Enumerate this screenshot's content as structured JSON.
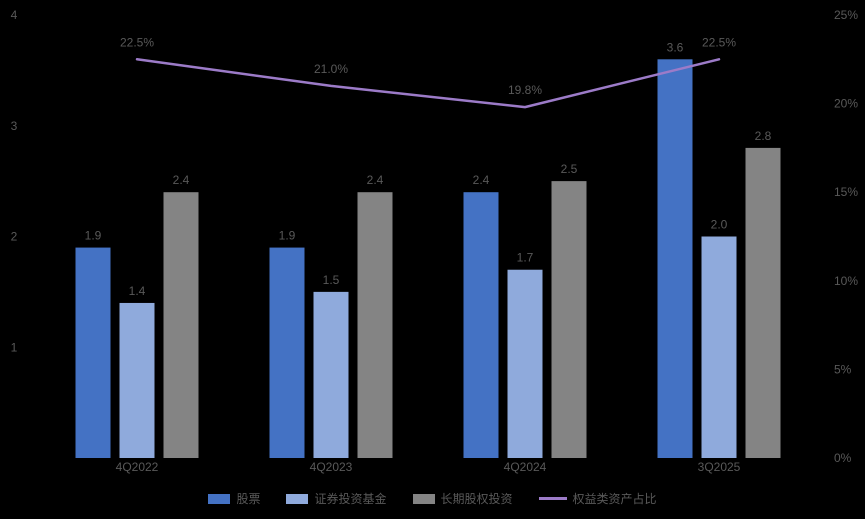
{
  "chart_data": {
    "type": "bar",
    "subtype": "grouped-bar-with-line",
    "title": "",
    "categories": [
      "4Q2022",
      "4Q2023",
      "4Q2024",
      "3Q2025"
    ],
    "bar_series": [
      {
        "name": "股票",
        "color": "#4472C4",
        "values": [
          1.9,
          1.9,
          2.4,
          3.6
        ]
      },
      {
        "name": "证券投资基金",
        "color": "#8FAADC",
        "values": [
          1.4,
          1.5,
          1.7,
          2.0
        ]
      },
      {
        "name": "长期股权投资",
        "color": "#848484",
        "values": [
          2.4,
          2.4,
          2.5,
          2.8
        ]
      }
    ],
    "line_series": {
      "name": "权益类资产占比",
      "color": "#9C7BC8",
      "values": [
        22.5,
        21.0,
        19.8,
        22.5
      ],
      "labels": [
        "22.5%",
        "21.0%",
        "19.8%",
        "22.5%"
      ]
    },
    "left_axis": {
      "min": 0,
      "max": 4,
      "ticks": [
        "4",
        "3",
        "2",
        "1"
      ]
    },
    "right_axis": {
      "min": 0,
      "max": 25,
      "ticks": [
        "25%",
        "20%",
        "15%",
        "10%",
        "5%",
        "0%"
      ]
    },
    "legend_position": "bottom",
    "grid": false,
    "background_color": "#000000",
    "text_color": "#595959"
  }
}
